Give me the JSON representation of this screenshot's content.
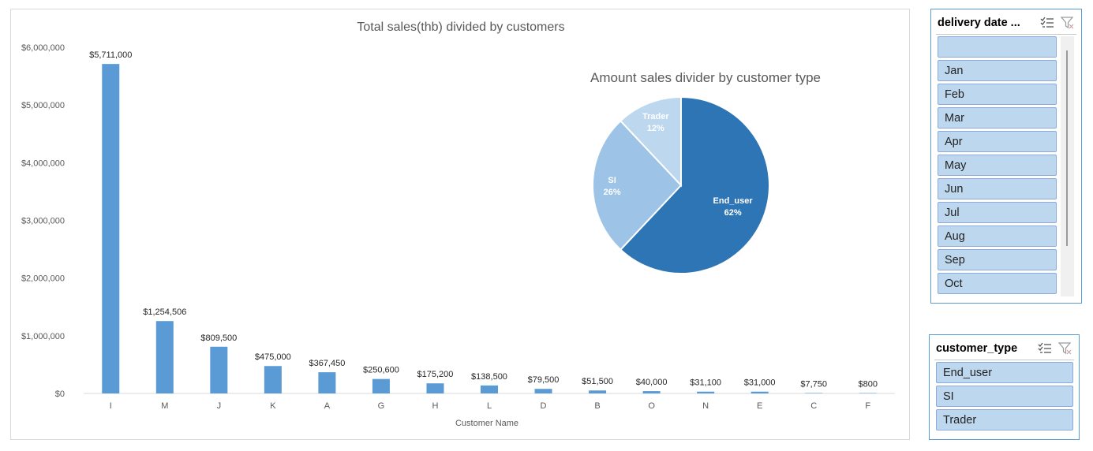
{
  "chart_data": [
    {
      "type": "bar",
      "title": "Total sales(thb) divided by customers",
      "xlabel": "Customer Name",
      "ylabel": "",
      "ylim": [
        0,
        6000000
      ],
      "yticks": [
        "$0",
        "$1,000,000",
        "$2,000,000",
        "$3,000,000",
        "$4,000,000",
        "$5,000,000",
        "$6,000,000"
      ],
      "categories": [
        "I",
        "M",
        "J",
        "K",
        "A",
        "G",
        "H",
        "L",
        "D",
        "B",
        "O",
        "N",
        "E",
        "C",
        "F"
      ],
      "values": [
        5711000,
        1254506,
        809500,
        475000,
        367450,
        250600,
        175200,
        138500,
        79500,
        51500,
        40000,
        31100,
        31000,
        7750,
        800
      ],
      "data_labels": [
        "$5,711,000",
        "$1,254,506",
        "$809,500",
        "$475,000",
        "$367,450",
        "$250,600",
        "$175,200",
        "$138,500",
        "$79,500",
        "$51,500",
        "$40,000",
        "$31,100",
        "$31,000",
        "$7,750",
        "$800"
      ],
      "color": "#5b9bd5",
      "grid": false,
      "legend": "none"
    },
    {
      "type": "pie",
      "title": "Amount sales divider by customer type",
      "labels": [
        "End_user",
        "SI",
        "Trader"
      ],
      "values": [
        62,
        26,
        12
      ],
      "percent_labels": [
        "62%",
        "26%",
        "12%"
      ],
      "colors": [
        "#2e75b6",
        "#9dc3e6",
        "#bdd7ee"
      ],
      "legend": "none"
    }
  ],
  "slicers": {
    "delivery_date": {
      "title": "delivery date ...",
      "items": [
        "",
        "Jan",
        "Feb",
        "Mar",
        "Apr",
        "May",
        "Jun",
        "Jul",
        "Aug",
        "Sep",
        "Oct"
      ]
    },
    "customer_type": {
      "title": "customer_type",
      "items": [
        "End_user",
        "SI",
        "Trader"
      ]
    }
  },
  "icons": {
    "multiselect": "multi-select-icon",
    "clear_filter": "clear-filter-icon"
  }
}
